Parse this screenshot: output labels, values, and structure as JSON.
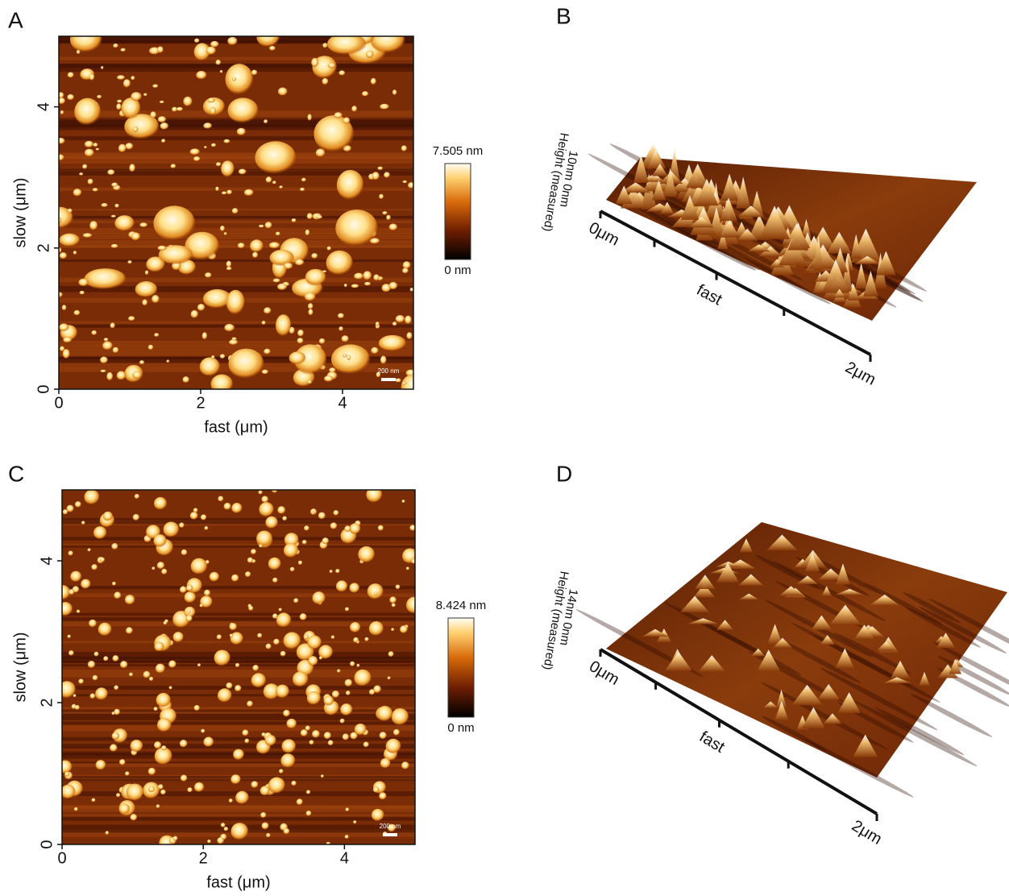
{
  "panels": [
    {
      "label": "A",
      "x_axis_label": "fast (μm)",
      "y_axis_label": "slow (μm)",
      "x_ticks": [
        0,
        2,
        4
      ],
      "y_ticks": [
        0,
        2,
        4
      ],
      "colorbar_max": "7.505 nm",
      "colorbar_min": "0 nm",
      "scale_bar": "200 nm"
    },
    {
      "label": "B",
      "axis_start": "0μm",
      "axis_label": "fast",
      "axis_end": "2μm",
      "z_axis_label": "Height (measured)",
      "z_range": "10nm 0nm"
    },
    {
      "label": "C",
      "x_axis_label": "fast (μm)",
      "y_axis_label": "slow (μm)",
      "x_ticks": [
        0,
        2,
        4
      ],
      "y_ticks": [
        0,
        2,
        4
      ],
      "colorbar_max": "8.424 nm",
      "colorbar_min": "0 nm",
      "scale_bar": "200 nm"
    },
    {
      "label": "D",
      "axis_start": "0μm",
      "axis_label": "fast",
      "axis_end": "2μm",
      "z_axis_label": "Height (measured)",
      "z_range": "14nm 0nm"
    }
  ]
}
